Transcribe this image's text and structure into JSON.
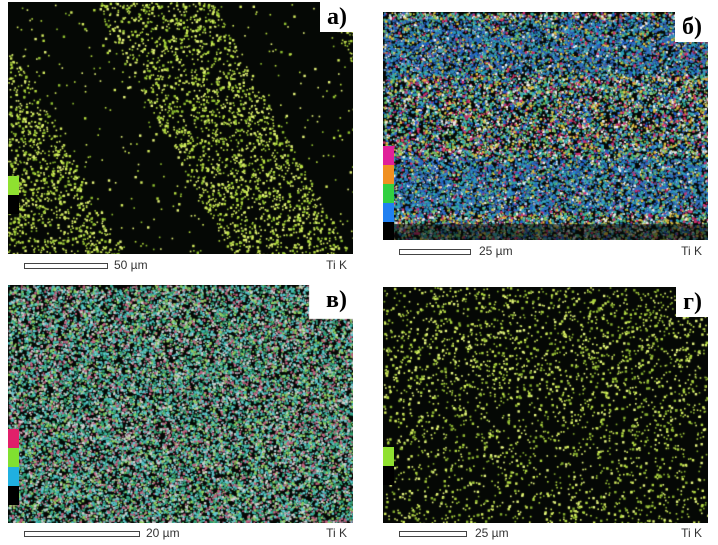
{
  "panels": [
    {
      "label": "а)",
      "scale": "50 µm",
      "element": "Ti K",
      "scale_fraction": 0.32,
      "palette": [
        "#b8e040",
        "#d8f060",
        "#90c030",
        "#e6f57a"
      ],
      "key_colors": [
        "#8fe030",
        "#000000"
      ],
      "pattern": "stripes"
    },
    {
      "label": "б)",
      "scale": "25 µm",
      "element": "Ti K",
      "scale_fraction": 0.24,
      "palette": [
        "#3fa8c8",
        "#2fb0a0",
        "#d03070",
        "#7ac860",
        "#f0f0f0",
        "#2060d0",
        "#e0c040"
      ],
      "key_colors": [
        "#e0209a",
        "#f09020",
        "#30d040",
        "#2080f0",
        "#000000"
      ],
      "pattern": "banded"
    },
    {
      "label": "в)",
      "scale": "20 µm",
      "element": "Ti K",
      "scale_fraction": 0.36,
      "palette": [
        "#3fb8b0",
        "#60c8d0",
        "#d0d0d0",
        "#30a070",
        "#c06080",
        "#90d060"
      ],
      "key_colors": [
        "#e0206a",
        "#80e030",
        "#20b0e0",
        "#000000"
      ],
      "pattern": "uniform"
    },
    {
      "label": "г)",
      "scale": "25 µm",
      "element": "Ti K",
      "scale_fraction": 0.22,
      "palette": [
        "#b0d840",
        "#d8f060",
        "#88b030",
        "#e8f880"
      ],
      "key_colors": [
        "#90e030",
        "#000000"
      ],
      "pattern": "sparse"
    }
  ]
}
